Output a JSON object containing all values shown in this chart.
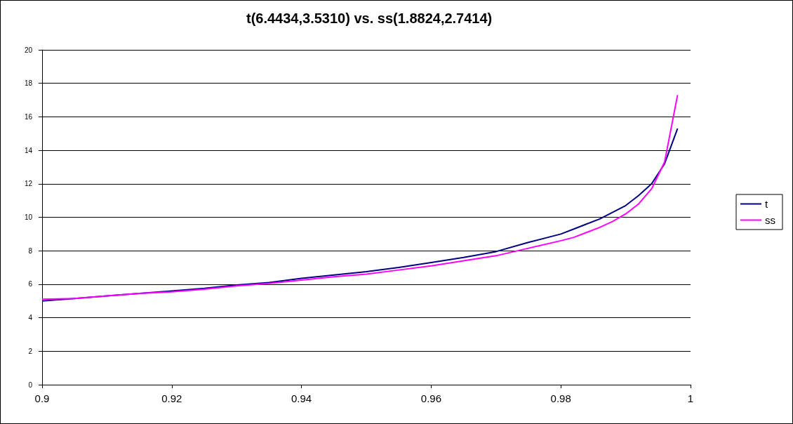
{
  "chart_data": {
    "type": "line",
    "title": "t(6.4434,3.5310) vs. ss(1.8824,2.7414)",
    "x": [
      0.9,
      0.905,
      0.91,
      0.915,
      0.92,
      0.925,
      0.93,
      0.935,
      0.94,
      0.945,
      0.95,
      0.955,
      0.96,
      0.965,
      0.97,
      0.975,
      0.98,
      0.982,
      0.984,
      0.986,
      0.988,
      0.99,
      0.992,
      0.994,
      0.996,
      0.998
    ],
    "series": [
      {
        "name": "t",
        "color": "#000080",
        "values": [
          5.0,
          5.15,
          5.3,
          5.45,
          5.6,
          5.75,
          5.95,
          6.1,
          6.35,
          6.55,
          6.75,
          7.0,
          7.3,
          7.6,
          7.95,
          8.5,
          9.0,
          9.3,
          9.6,
          9.9,
          10.3,
          10.7,
          11.3,
          12.0,
          13.2,
          15.3
        ]
      },
      {
        "name": "ss",
        "color": "#ff00ff",
        "values": [
          5.1,
          5.15,
          5.3,
          5.45,
          5.55,
          5.7,
          5.9,
          6.05,
          6.25,
          6.45,
          6.6,
          6.85,
          7.1,
          7.4,
          7.7,
          8.15,
          8.6,
          8.8,
          9.1,
          9.4,
          9.75,
          10.2,
          10.8,
          11.7,
          13.3,
          17.3
        ]
      }
    ],
    "xlim": [
      0.9,
      1
    ],
    "xticks": [
      0.9,
      0.92,
      0.94,
      0.96,
      0.98,
      1
    ],
    "ylim": [
      0,
      20
    ],
    "yticks": [
      0,
      2,
      4,
      6,
      8,
      10,
      12,
      14,
      16,
      18,
      20
    ],
    "grid": "y",
    "legend": "right",
    "marker": "none",
    "line_style": "solid"
  }
}
